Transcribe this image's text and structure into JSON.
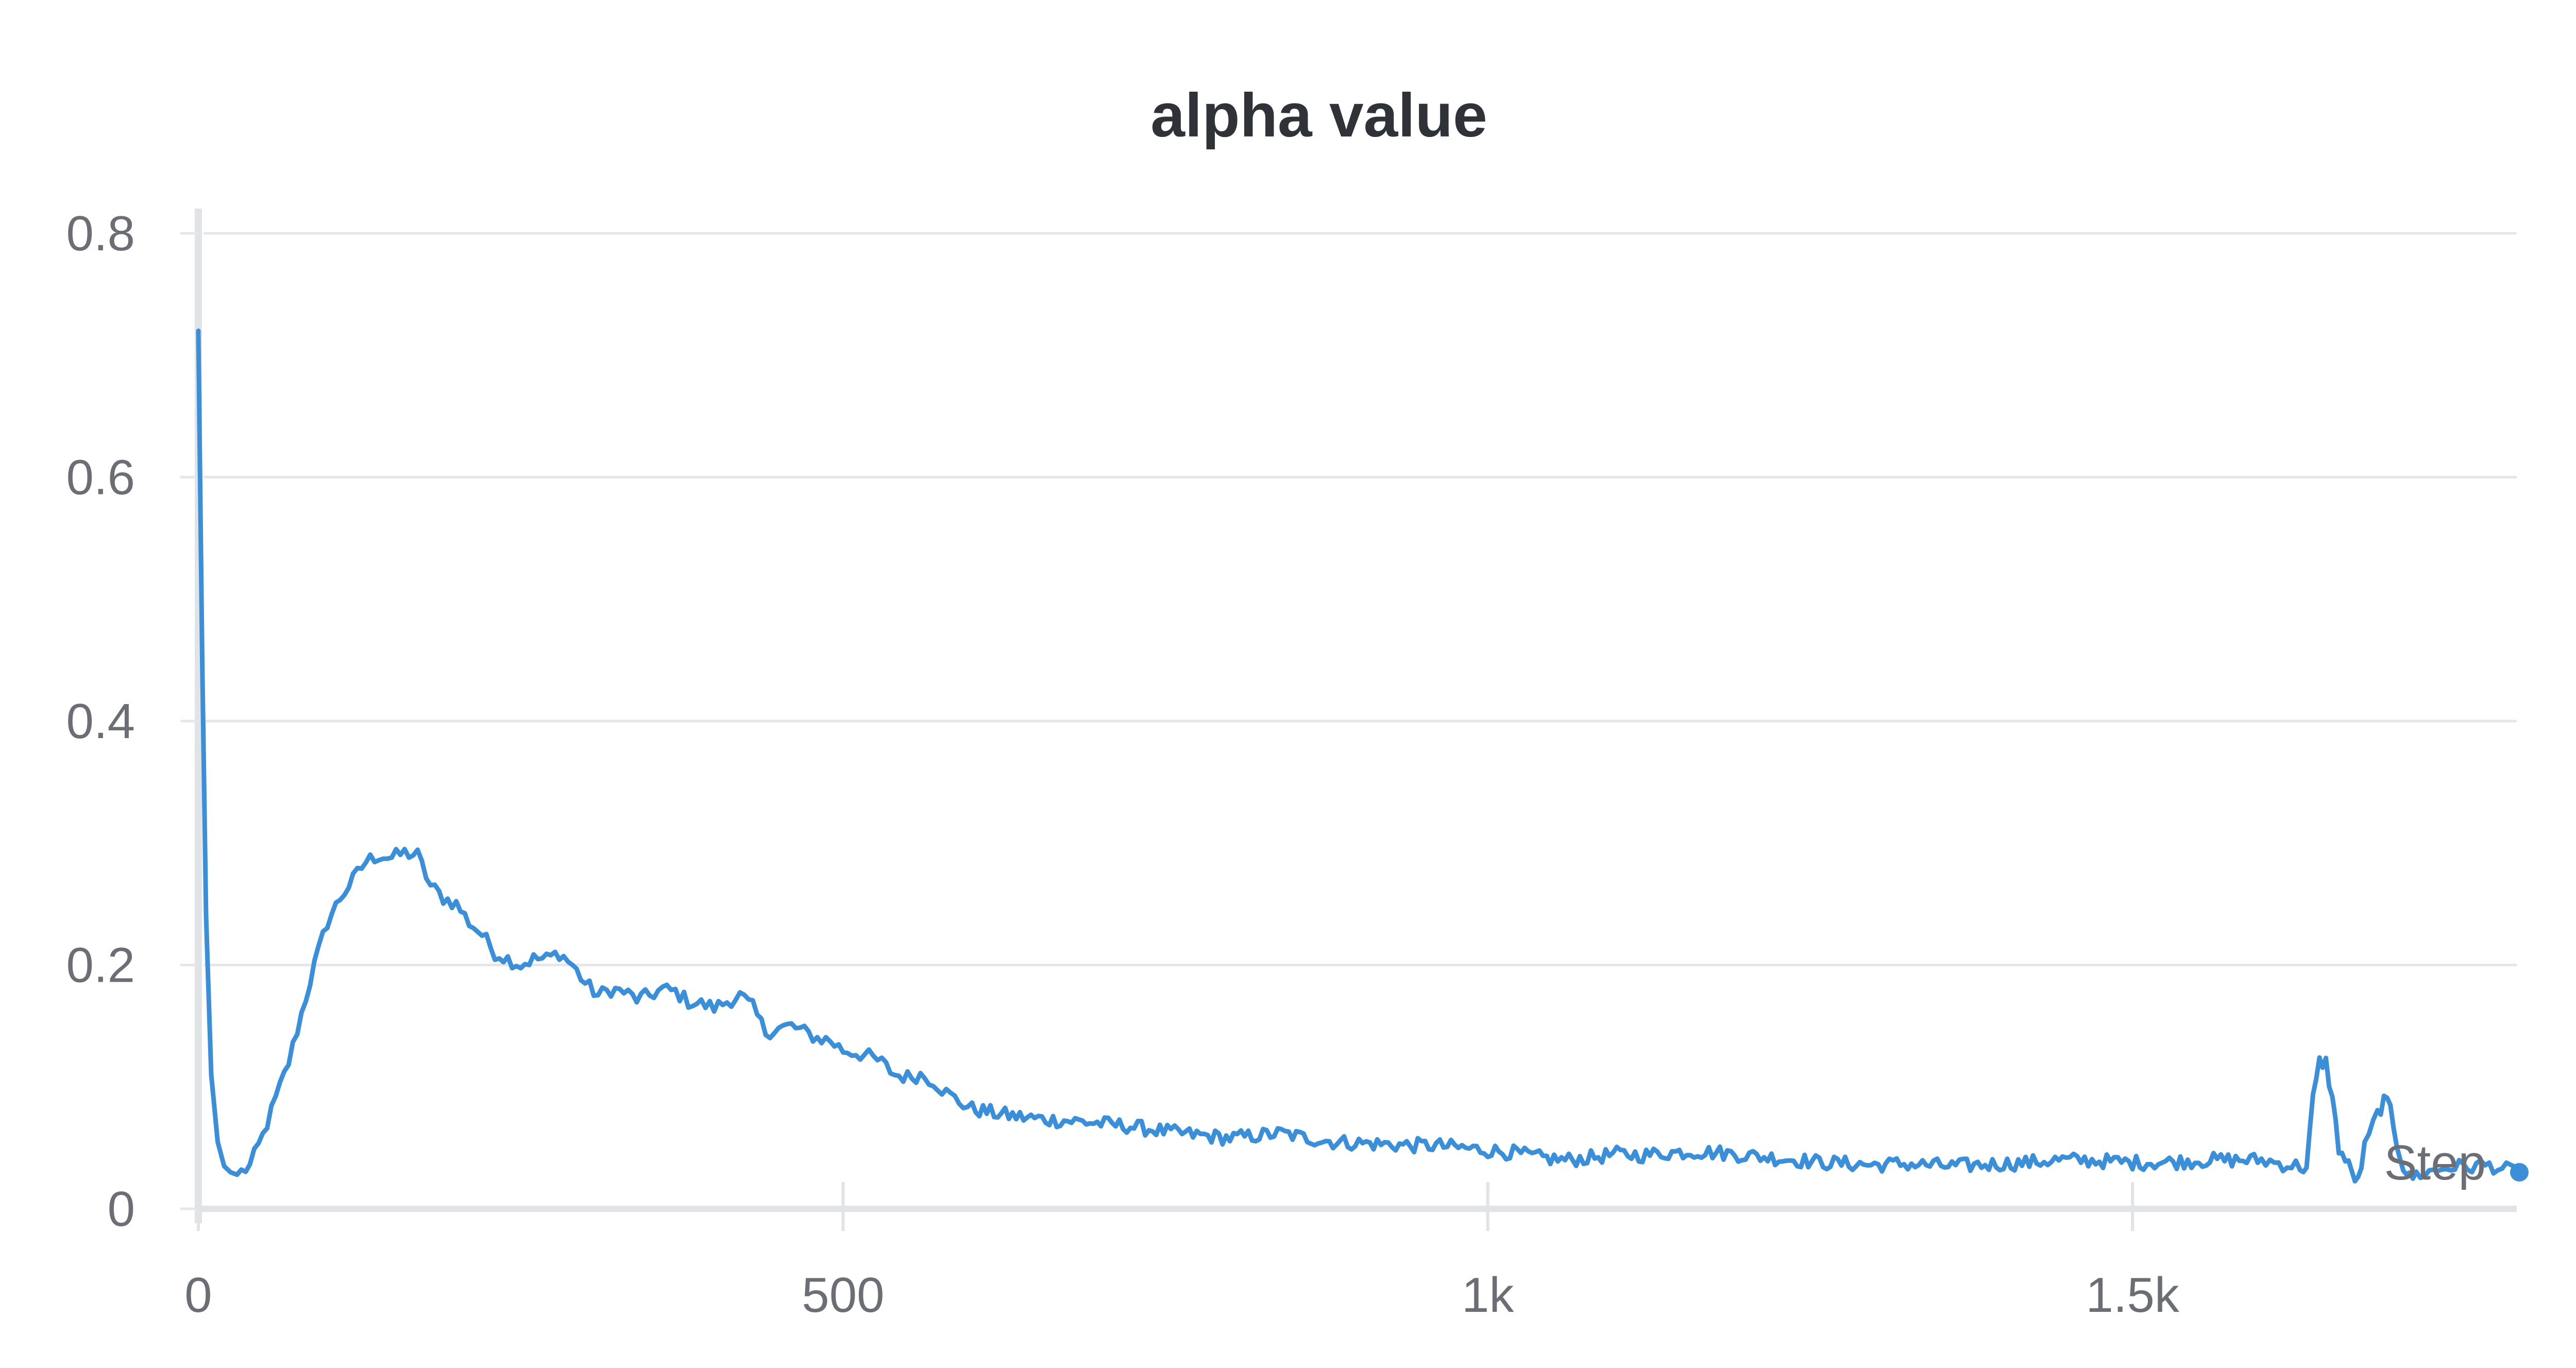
{
  "chart_data": {
    "type": "line",
    "title": "alpha value",
    "xlabel": "Step",
    "ylabel": "",
    "xlim": [
      0,
      1800
    ],
    "ylim": [
      0,
      0.8
    ],
    "x_ticks": [
      0,
      500,
      1000,
      1500
    ],
    "x_tick_labels": [
      "0",
      "500",
      "1k",
      "1.5k"
    ],
    "y_ticks": [
      0,
      0.2,
      0.4,
      0.6,
      0.8
    ],
    "y_tick_labels": [
      "0",
      "0.2",
      "0.4",
      "0.6",
      "0.8"
    ],
    "grid": true,
    "legend": "none",
    "line_color": "#3b8fd9",
    "series": [
      {
        "x": [
          0,
          3,
          6,
          10,
          15,
          20,
          25,
          30,
          40,
          50,
          60,
          70,
          80,
          90,
          100,
          110,
          120,
          130,
          140,
          150,
          160,
          170,
          180,
          190,
          200,
          210,
          220,
          230,
          240,
          250,
          260,
          270,
          280,
          290,
          300,
          310,
          320,
          330,
          340,
          350,
          360,
          370,
          380,
          390,
          400,
          410,
          420,
          430,
          440,
          450,
          460,
          470,
          480,
          490,
          500,
          510,
          520,
          530,
          540,
          550,
          560,
          570,
          580,
          590,
          600,
          620,
          640,
          660,
          680,
          700,
          720,
          740,
          760,
          780,
          800,
          820,
          840,
          860,
          880,
          900,
          920,
          940,
          960,
          980,
          1000,
          1020,
          1040,
          1060,
          1080,
          1100,
          1120,
          1140,
          1160,
          1180,
          1200,
          1220,
          1240,
          1260,
          1280,
          1300,
          1320,
          1340,
          1360,
          1380,
          1400,
          1420,
          1440,
          1460,
          1480,
          1500,
          1520,
          1540,
          1560,
          1580,
          1600,
          1610,
          1620,
          1630,
          1635,
          1640,
          1645,
          1650,
          1655,
          1660,
          1665,
          1670,
          1675,
          1680,
          1690,
          1695,
          1700,
          1705,
          1710,
          1715,
          1720,
          1730,
          1740,
          1750,
          1760,
          1770,
          1780,
          1790,
          1800
        ],
        "y": [
          0.72,
          0.45,
          0.24,
          0.11,
          0.055,
          0.035,
          0.03,
          0.028,
          0.035,
          0.06,
          0.09,
          0.12,
          0.16,
          0.2,
          0.235,
          0.255,
          0.27,
          0.285,
          0.29,
          0.288,
          0.292,
          0.29,
          0.265,
          0.255,
          0.25,
          0.235,
          0.225,
          0.21,
          0.205,
          0.2,
          0.205,
          0.205,
          0.21,
          0.2,
          0.185,
          0.175,
          0.18,
          0.178,
          0.172,
          0.175,
          0.18,
          0.178,
          0.17,
          0.168,
          0.165,
          0.17,
          0.175,
          0.165,
          0.145,
          0.148,
          0.15,
          0.145,
          0.14,
          0.138,
          0.13,
          0.128,
          0.125,
          0.12,
          0.11,
          0.108,
          0.11,
          0.105,
          0.095,
          0.088,
          0.082,
          0.078,
          0.075,
          0.073,
          0.072,
          0.07,
          0.068,
          0.065,
          0.062,
          0.06,
          0.058,
          0.06,
          0.062,
          0.058,
          0.055,
          0.054,
          0.053,
          0.052,
          0.052,
          0.05,
          0.048,
          0.046,
          0.042,
          0.04,
          0.042,
          0.045,
          0.044,
          0.046,
          0.047,
          0.046,
          0.044,
          0.042,
          0.04,
          0.038,
          0.037,
          0.036,
          0.037,
          0.036,
          0.035,
          0.036,
          0.037,
          0.038,
          0.04,
          0.04,
          0.039,
          0.038,
          0.038,
          0.039,
          0.04,
          0.04,
          0.04,
          0.038,
          0.036,
          0.035,
          0.033,
          0.09,
          0.12,
          0.12,
          0.09,
          0.05,
          0.04,
          0.03,
          0.022,
          0.05,
          0.078,
          0.088,
          0.082,
          0.055,
          0.035,
          0.025,
          0.028,
          0.03,
          0.033,
          0.035,
          0.034,
          0.036,
          0.035,
          0.032,
          0.03
        ]
      }
    ]
  }
}
